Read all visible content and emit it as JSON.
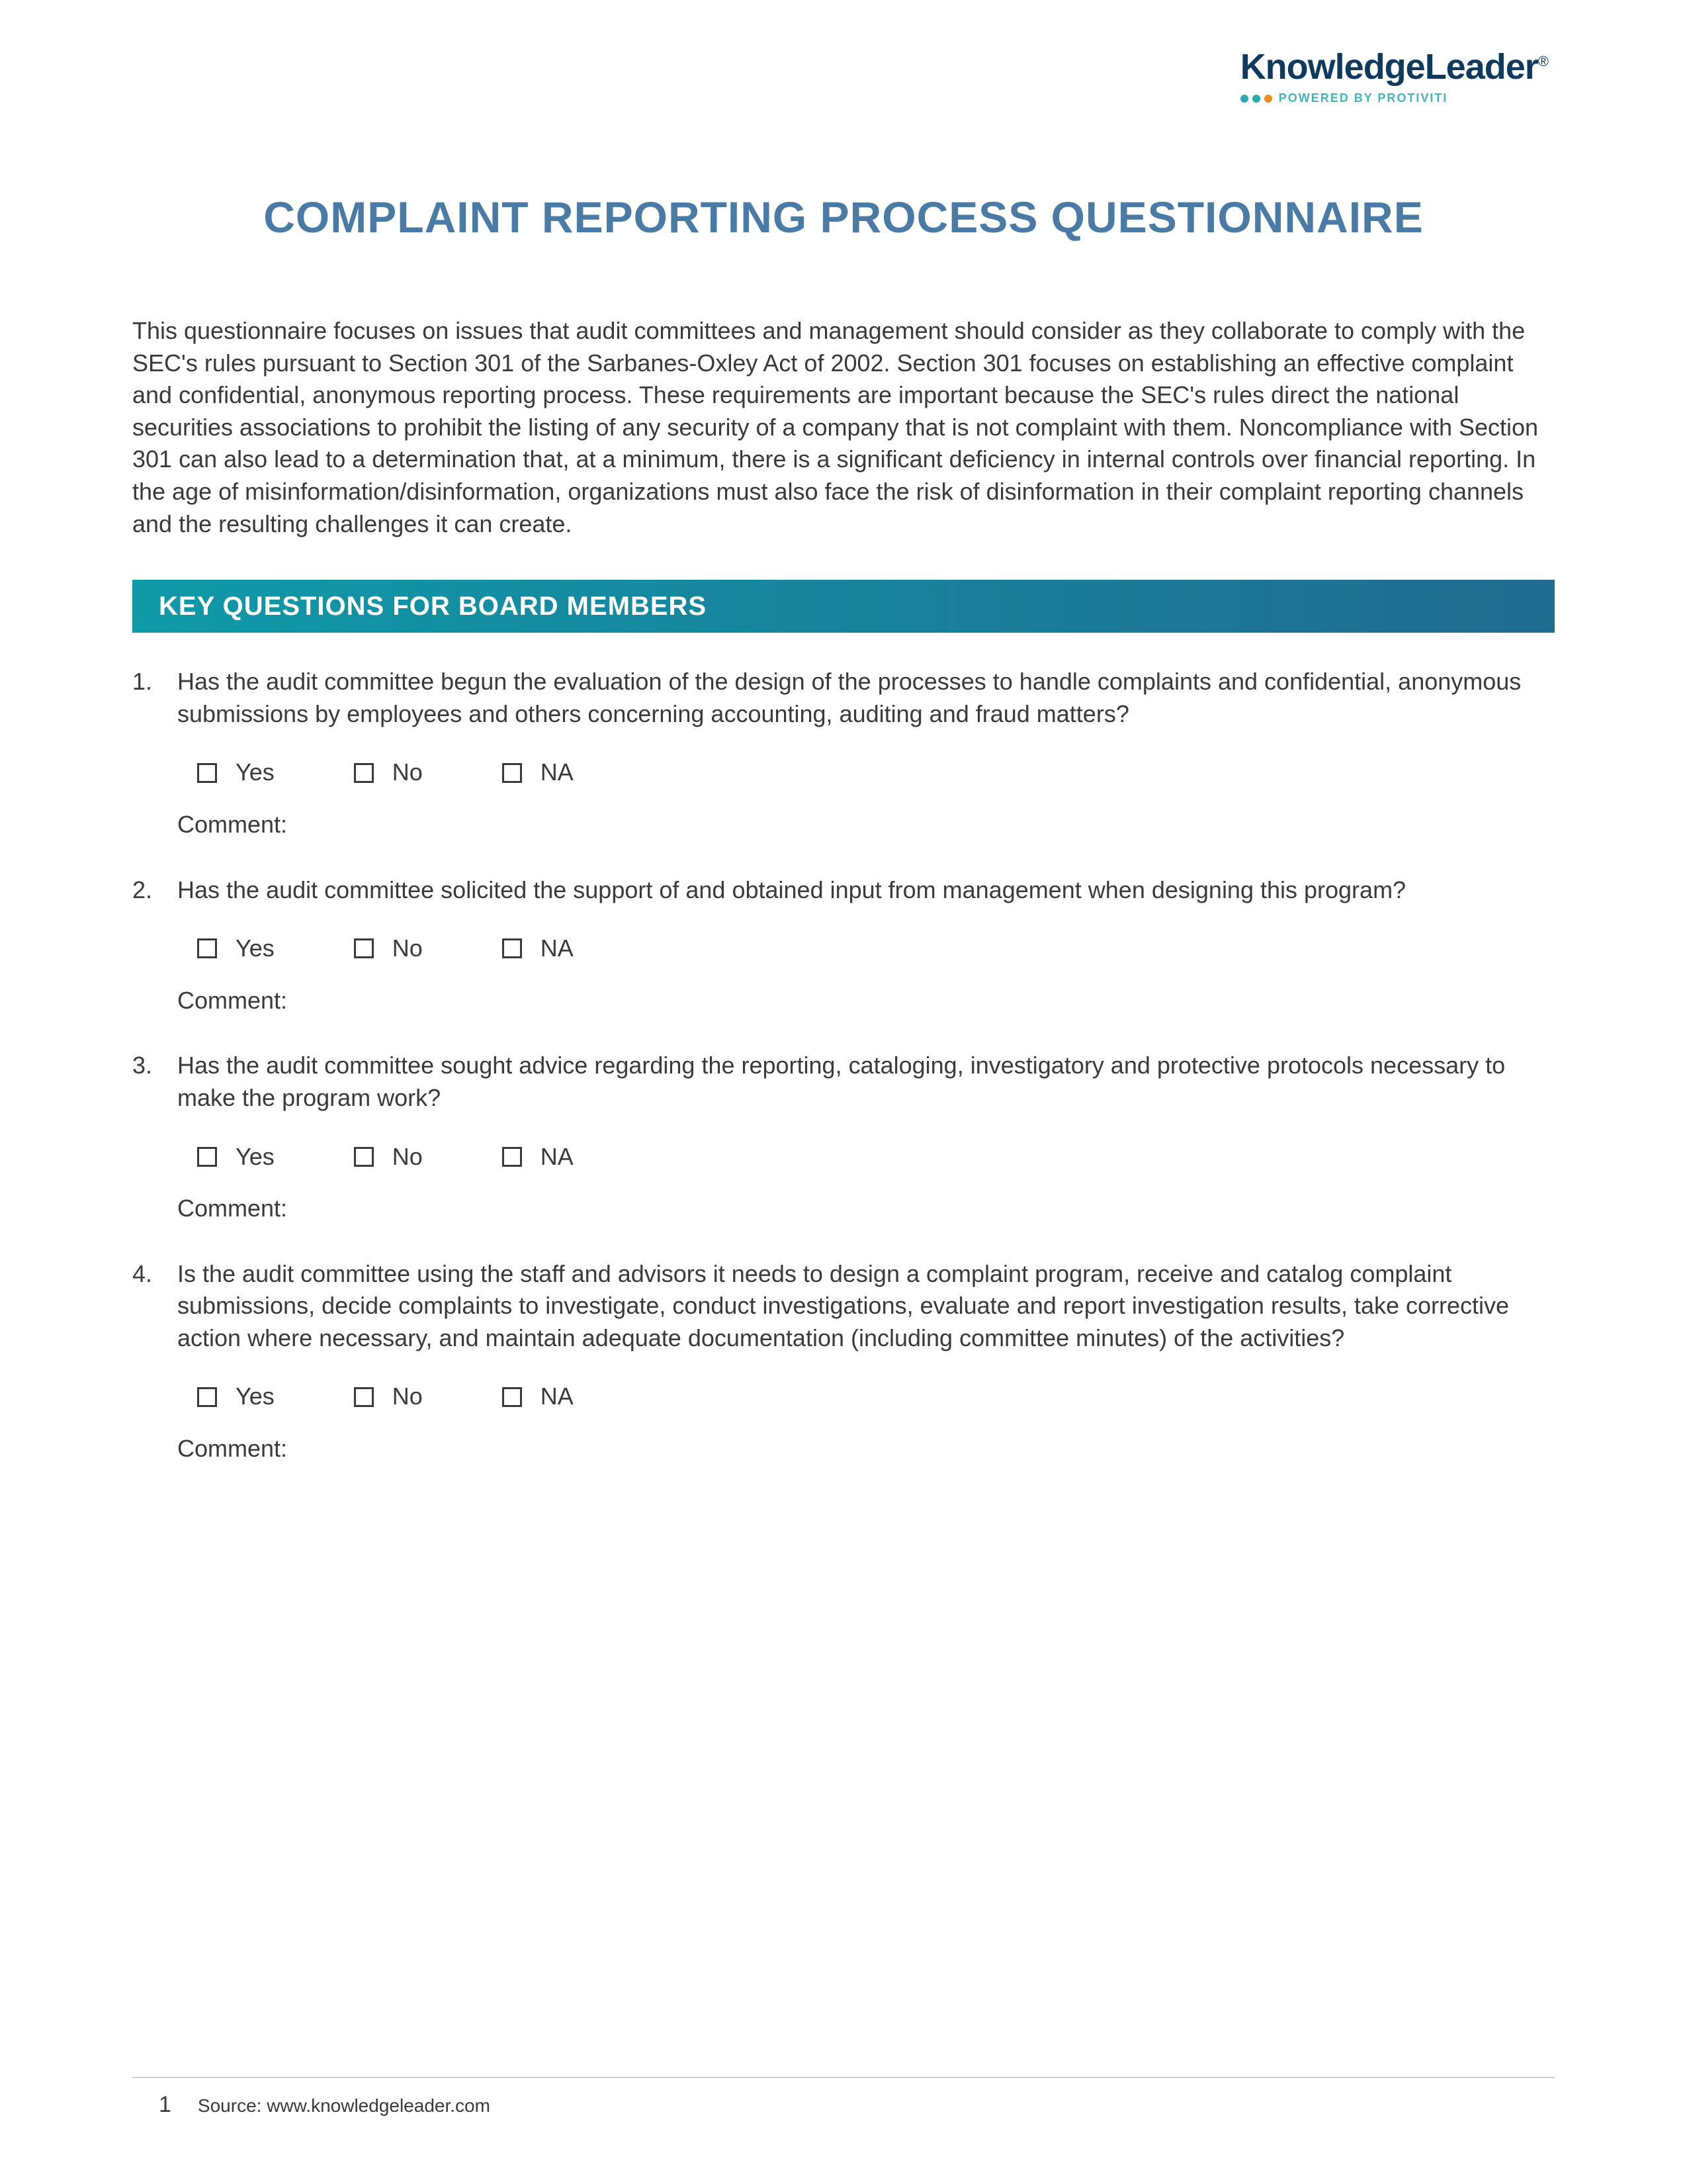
{
  "logo": {
    "name": "KnowledgeLeader",
    "registered_mark": "®",
    "tagline": "POWERED BY PROTIVITI",
    "name_color": "#0f3a5f",
    "tagline_color": "#3fb5bf",
    "dot_colors": [
      "#2aa7b0",
      "#2aa7b0",
      "#f08a24"
    ]
  },
  "title": {
    "text": "COMPLAINT REPORTING PROCESS QUESTIONNAIRE",
    "color": "#4a7ba6",
    "fontsize": 66
  },
  "intro": "This questionnaire focuses on issues that audit committees and management should consider as they collaborate to comply with the SEC's rules pursuant to Section 301 of the Sarbanes-Oxley Act of 2002. Section 301 focuses on establishing an effective complaint and confidential, anonymous reporting process. These requirements are important because the SEC's rules direct the national securities associations to prohibit the listing of any security of a company that is not complaint with them. Noncompliance with Section 301 can also lead to a determination that, at a minimum, there is a significant deficiency in internal controls over financial reporting. In the age of misinformation/disinformation, organizations must also face the risk of disinformation in their complaint reporting channels and the resulting challenges it can create.",
  "section_header": {
    "text": "KEY QUESTIONS FOR BOARD MEMBERS",
    "gradient_from": "#0f9aa8",
    "gradient_to": "#206b8f",
    "text_color": "#ffffff"
  },
  "option_labels": {
    "yes": "Yes",
    "no": "No",
    "na": "NA"
  },
  "comment_label": "Comment:",
  "questions": [
    {
      "num": "1.",
      "text": "Has the audit committee begun the evaluation of the design of the processes to handle complaints and confidential, anonymous submissions by employees and others concerning accounting, auditing and fraud matters?"
    },
    {
      "num": "2.",
      "text": "Has the audit committee solicited the support of and obtained input from management when designing this program?"
    },
    {
      "num": "3.",
      "text": "Has the audit committee sought advice regarding the reporting, cataloging, investigatory and protective protocols necessary to make the program work?"
    },
    {
      "num": "4.",
      "text": "Is the audit committee using the staff and advisors it needs to design a complaint program, receive and catalog complaint submissions, decide complaints to investigate, conduct investigations, evaluate and report investigation results, take corrective action where necessary, and maintain adequate documentation (including committee minutes) of the activities?"
    }
  ],
  "footer": {
    "page_number": "1",
    "source_label": "Source: www.knowledgeleader.com",
    "rule_color": "#cfcfcf"
  },
  "body_text_color": "#3a3a3a",
  "page_background": "#ffffff"
}
